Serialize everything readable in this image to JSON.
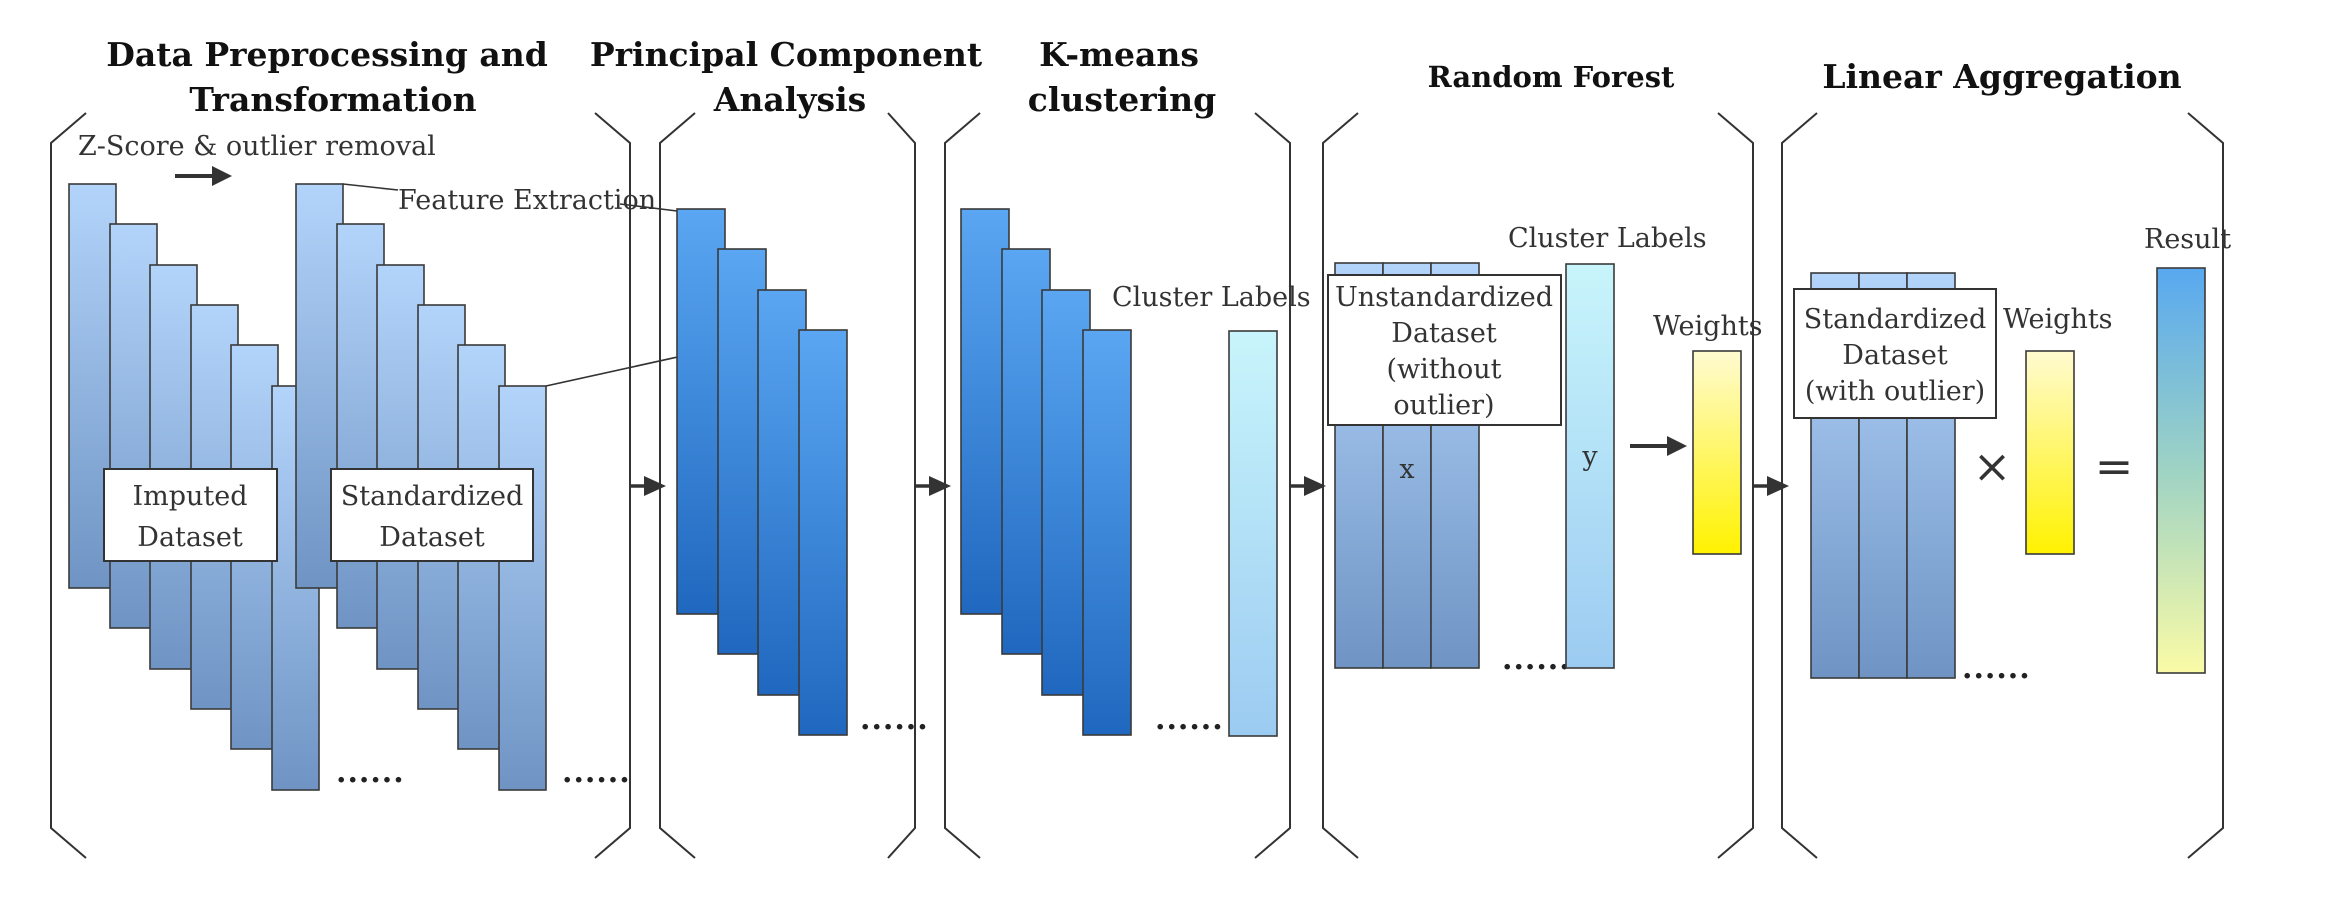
{
  "sections": [
    {
      "id": "preprocessing",
      "title_lines": [
        "Data Preprocessing and",
        "Transformation"
      ]
    },
    {
      "id": "pca",
      "title_lines": [
        "Principal Component",
        "Analysis"
      ]
    },
    {
      "id": "kmeans",
      "title_lines": [
        "K-means",
        "clustering"
      ]
    },
    {
      "id": "random_forest",
      "title_lines": [
        "Random Forest"
      ]
    },
    {
      "id": "aggregation",
      "title_lines": [
        "Linear Aggregation"
      ]
    }
  ],
  "labels": {
    "zscore": "Z-Score & outlier removal",
    "feature_extraction": "Feature Extraction",
    "imputed": [
      "Imputed",
      "Dataset"
    ],
    "standardized": [
      "Standardized",
      "Dataset"
    ],
    "cluster_labels_kmeans": "Cluster Labels",
    "unstandardized": [
      "Unstandardized",
      "Dataset",
      "(without",
      "outlier)"
    ],
    "x": "x",
    "cluster_labels_rf": "Cluster Labels",
    "y": "y",
    "weights_rf": "Weights",
    "standardized_with": [
      "Standardized",
      "Dataset",
      "(with outlier)"
    ],
    "weights_agg": "Weights",
    "times": "×",
    "equals": "=",
    "result": "Result",
    "ellipsis": "......"
  },
  "colors": {
    "light_blue_top": "#b3d4fa",
    "light_blue_bottom": "#6f94c4",
    "deep_blue_top": "#5aa6f2",
    "deep_blue_bottom": "#2068bf",
    "cyan_top": "#c8f5fb",
    "cyan_bottom": "#9ccbf2",
    "yellow_top": "#fffbd0",
    "yellow_bottom": "#fff200",
    "result_top": "#58a8f0",
    "result_mid": "#9ed3c4",
    "result_bottom": "#fafba6"
  }
}
